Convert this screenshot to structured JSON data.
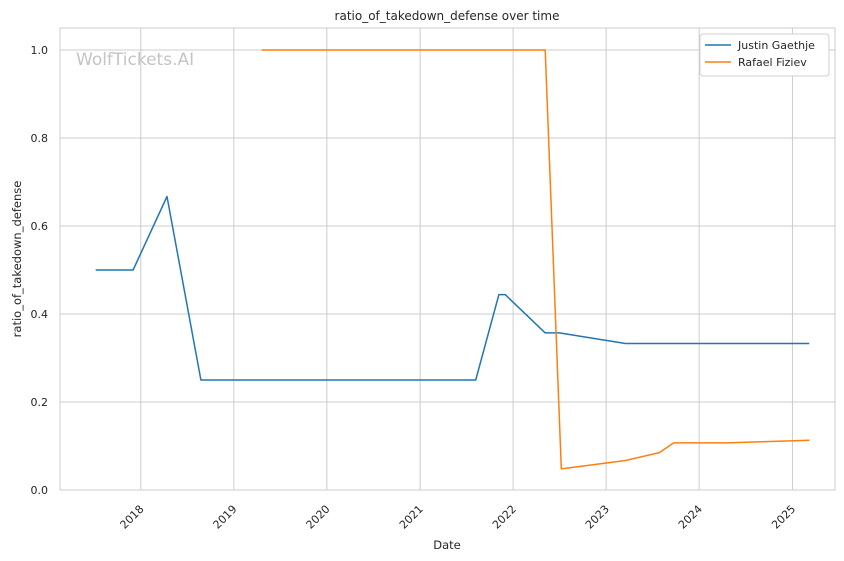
{
  "watermark": "WolfTickets.AI",
  "chart_data": {
    "type": "line",
    "title": "ratio_of_takedown_defense over time",
    "xlabel": "Date",
    "ylabel": "ratio_of_takedown_defense",
    "x_ticks": [
      "2018",
      "2019",
      "2020",
      "2021",
      "2022",
      "2023",
      "2024",
      "2025"
    ],
    "x_range": [
      "2017-02-18",
      "2025-06-17"
    ],
    "y_ticks": [
      "0.0",
      "0.2",
      "0.4",
      "0.6",
      "0.8",
      "1.0"
    ],
    "ylim": [
      0,
      1.05
    ],
    "grid": true,
    "legend_position": "top-right",
    "series": [
      {
        "name": "Justin Gaethje",
        "color": "#1f77b4",
        "points": [
          {
            "x": "2017-07-08",
            "y": 0.5
          },
          {
            "x": "2017-12-02",
            "y": 0.5
          },
          {
            "x": "2018-04-14",
            "y": 0.667
          },
          {
            "x": "2018-08-25",
            "y": 0.25
          },
          {
            "x": "2021-08-07",
            "y": 0.25
          },
          {
            "x": "2021-11-06",
            "y": 0.444
          },
          {
            "x": "2021-12-01",
            "y": 0.444
          },
          {
            "x": "2022-05-07",
            "y": 0.357
          },
          {
            "x": "2022-07-01",
            "y": 0.357
          },
          {
            "x": "2023-03-18",
            "y": 0.333
          },
          {
            "x": "2025-03-08",
            "y": 0.333
          }
        ]
      },
      {
        "name": "Rafael Fiziev",
        "color": "#ff7f0e",
        "points": [
          {
            "x": "2019-04-20",
            "y": 1.0
          },
          {
            "x": "2022-05-07",
            "y": 1.0
          },
          {
            "x": "2022-07-09",
            "y": 0.048
          },
          {
            "x": "2023-03-18",
            "y": 0.067
          },
          {
            "x": "2023-07-29",
            "y": 0.085
          },
          {
            "x": "2023-09-23",
            "y": 0.107
          },
          {
            "x": "2024-04-13",
            "y": 0.107
          },
          {
            "x": "2025-03-08",
            "y": 0.113
          }
        ]
      }
    ]
  }
}
